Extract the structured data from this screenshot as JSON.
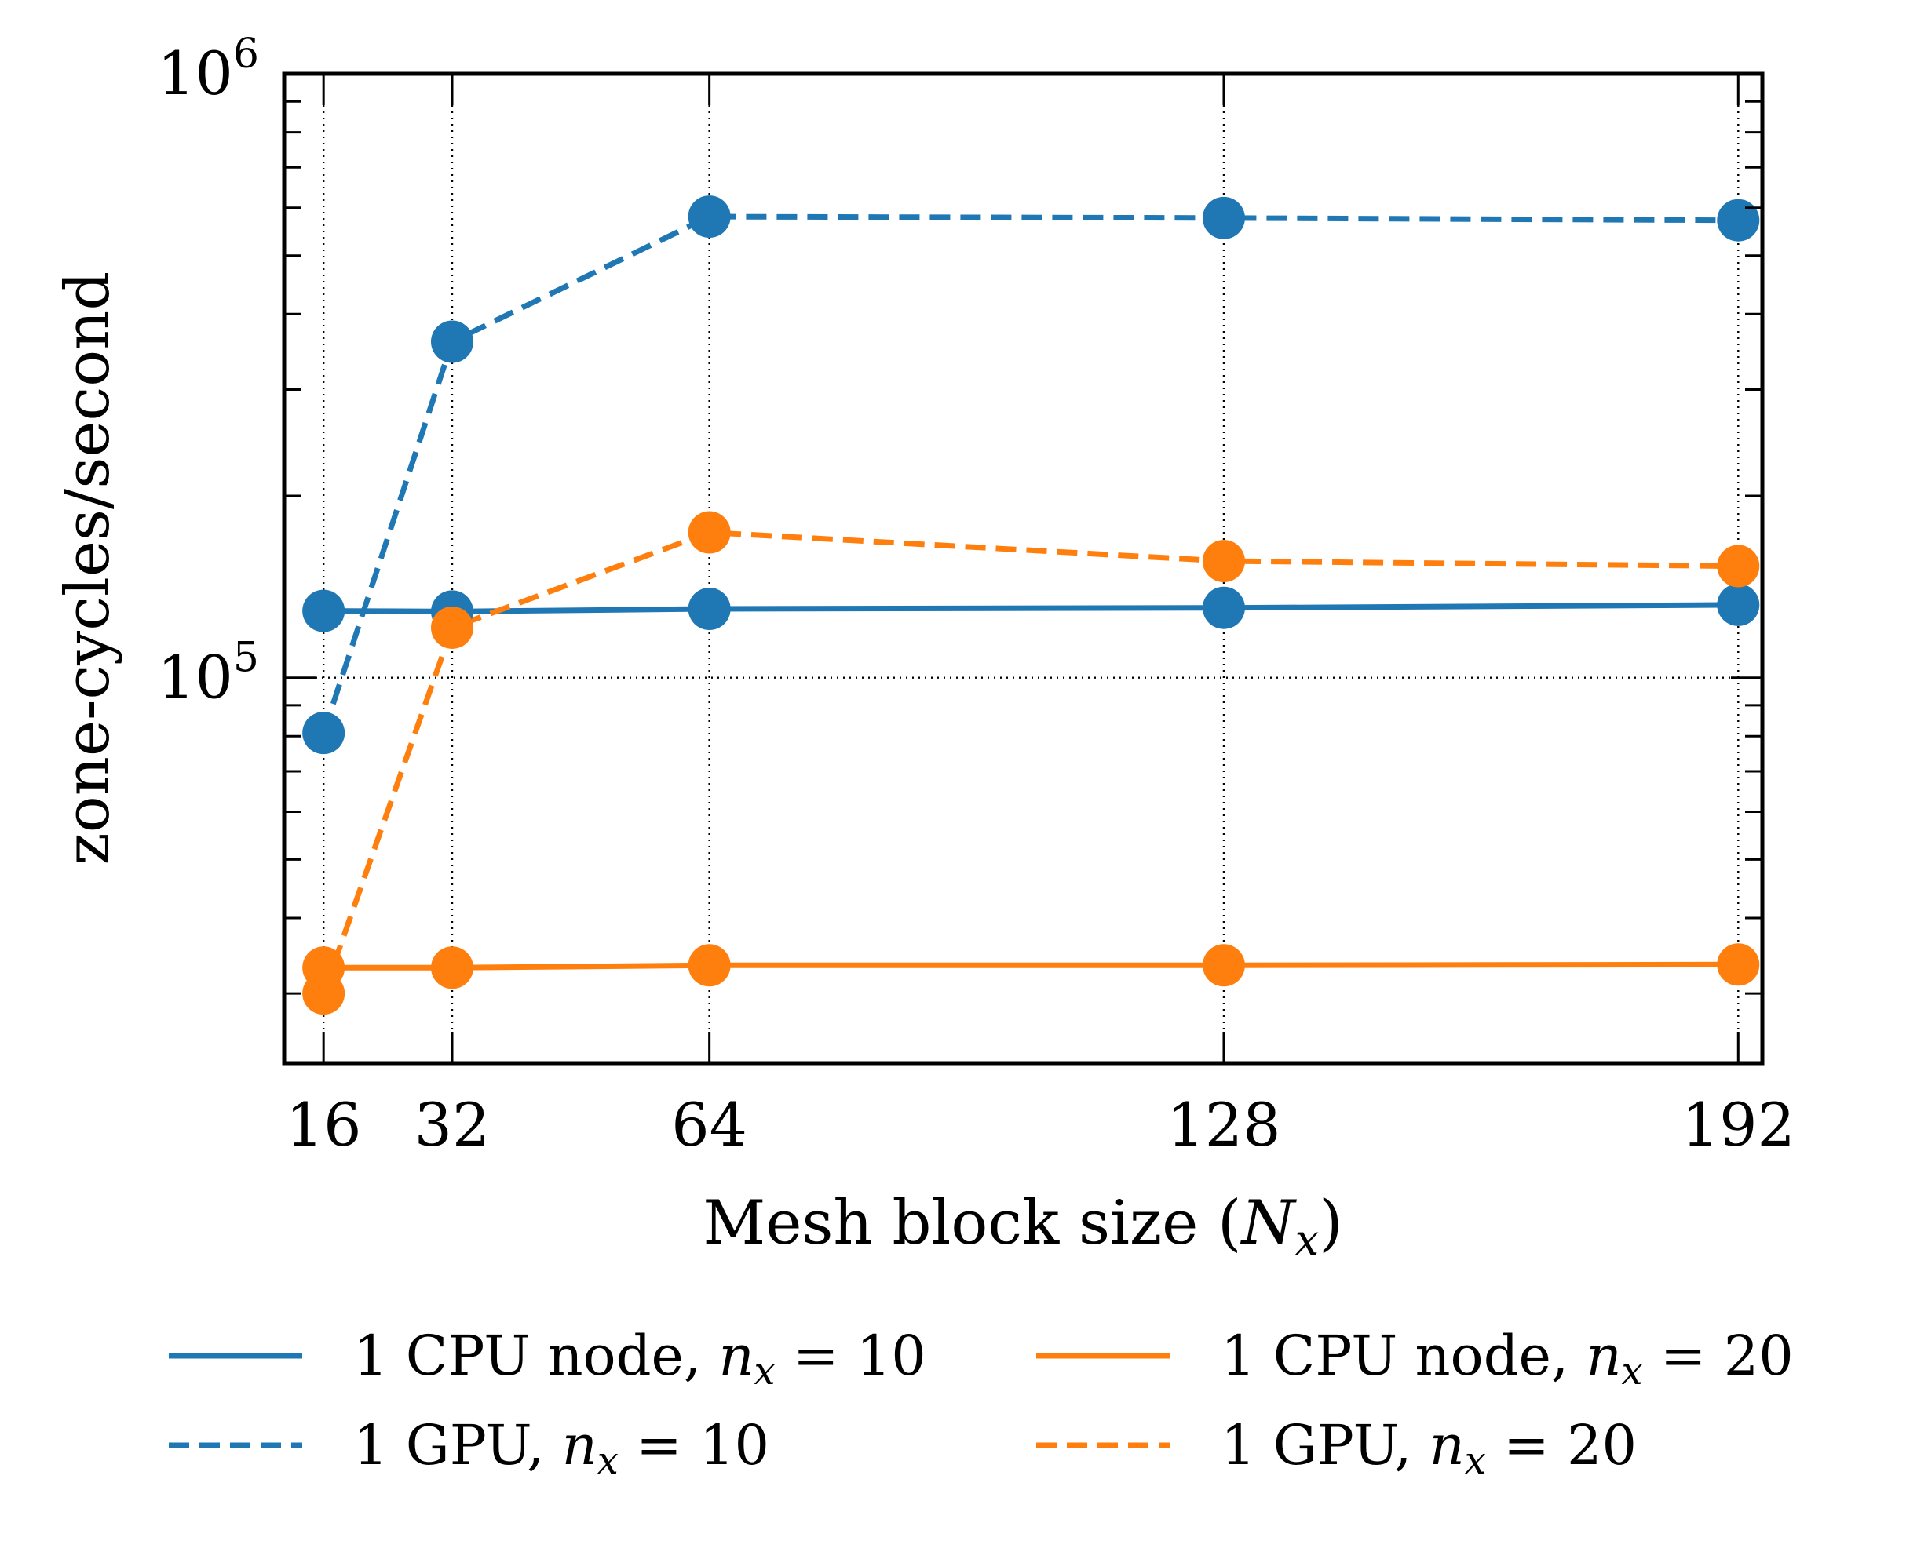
{
  "chart_data": {
    "type": "line",
    "title": "",
    "xlabel": "Mesh block size (N_x)",
    "xlabel_parts": {
      "prefix": "Mesh block size (",
      "var": "N",
      "sub": "x",
      "suffix": ")"
    },
    "ylabel": "zone-cycles/second",
    "yscale": "log",
    "ylim": [
      23000,
      1000000
    ],
    "xlim": [
      11.1,
      195
    ],
    "x": [
      16,
      32,
      64,
      128,
      192
    ],
    "xticks": [
      16,
      32,
      64,
      128,
      192
    ],
    "yticks": [
      {
        "value": 100000,
        "base": "10",
        "exp": "5"
      },
      {
        "value": 1000000,
        "base": "10",
        "exp": "6"
      }
    ],
    "grid": "dotted at x ticks and at 10^5",
    "legend_position": "bottom, two columns",
    "series": [
      {
        "name": "1 CPU node, n_x = 10",
        "label_main": "1 CPU node, ",
        "label_var": "n",
        "label_sub": "x",
        "label_rhs": " = 10",
        "color": "#1f77b4",
        "linestyle": "solid",
        "values": [
          129000,
          128700,
          130000,
          130500,
          132000
        ]
      },
      {
        "name": "1 GPU, n_x = 10",
        "label_main": "1 GPU, ",
        "label_var": "n",
        "label_sub": "x",
        "label_rhs": " = 10",
        "color": "#1f77b4",
        "linestyle": "dashed",
        "values": [
          81000,
          360000,
          580000,
          577000,
          572000
        ]
      },
      {
        "name": "1 CPU node, n_x = 20",
        "label_main": "1 CPU node, ",
        "label_var": "n",
        "label_sub": "x",
        "label_rhs": " = 20",
        "color": "#ff7f0e",
        "linestyle": "solid",
        "values": [
          33100,
          33100,
          33400,
          33400,
          33500
        ]
      },
      {
        "name": "1 GPU, n_x = 20",
        "label_main": "1 GPU, ",
        "label_var": "n",
        "label_sub": "x",
        "label_rhs": " = 20",
        "color": "#ff7f0e",
        "linestyle": "dashed",
        "values": [
          30000,
          121000,
          174000,
          156000,
          153000
        ]
      }
    ]
  }
}
